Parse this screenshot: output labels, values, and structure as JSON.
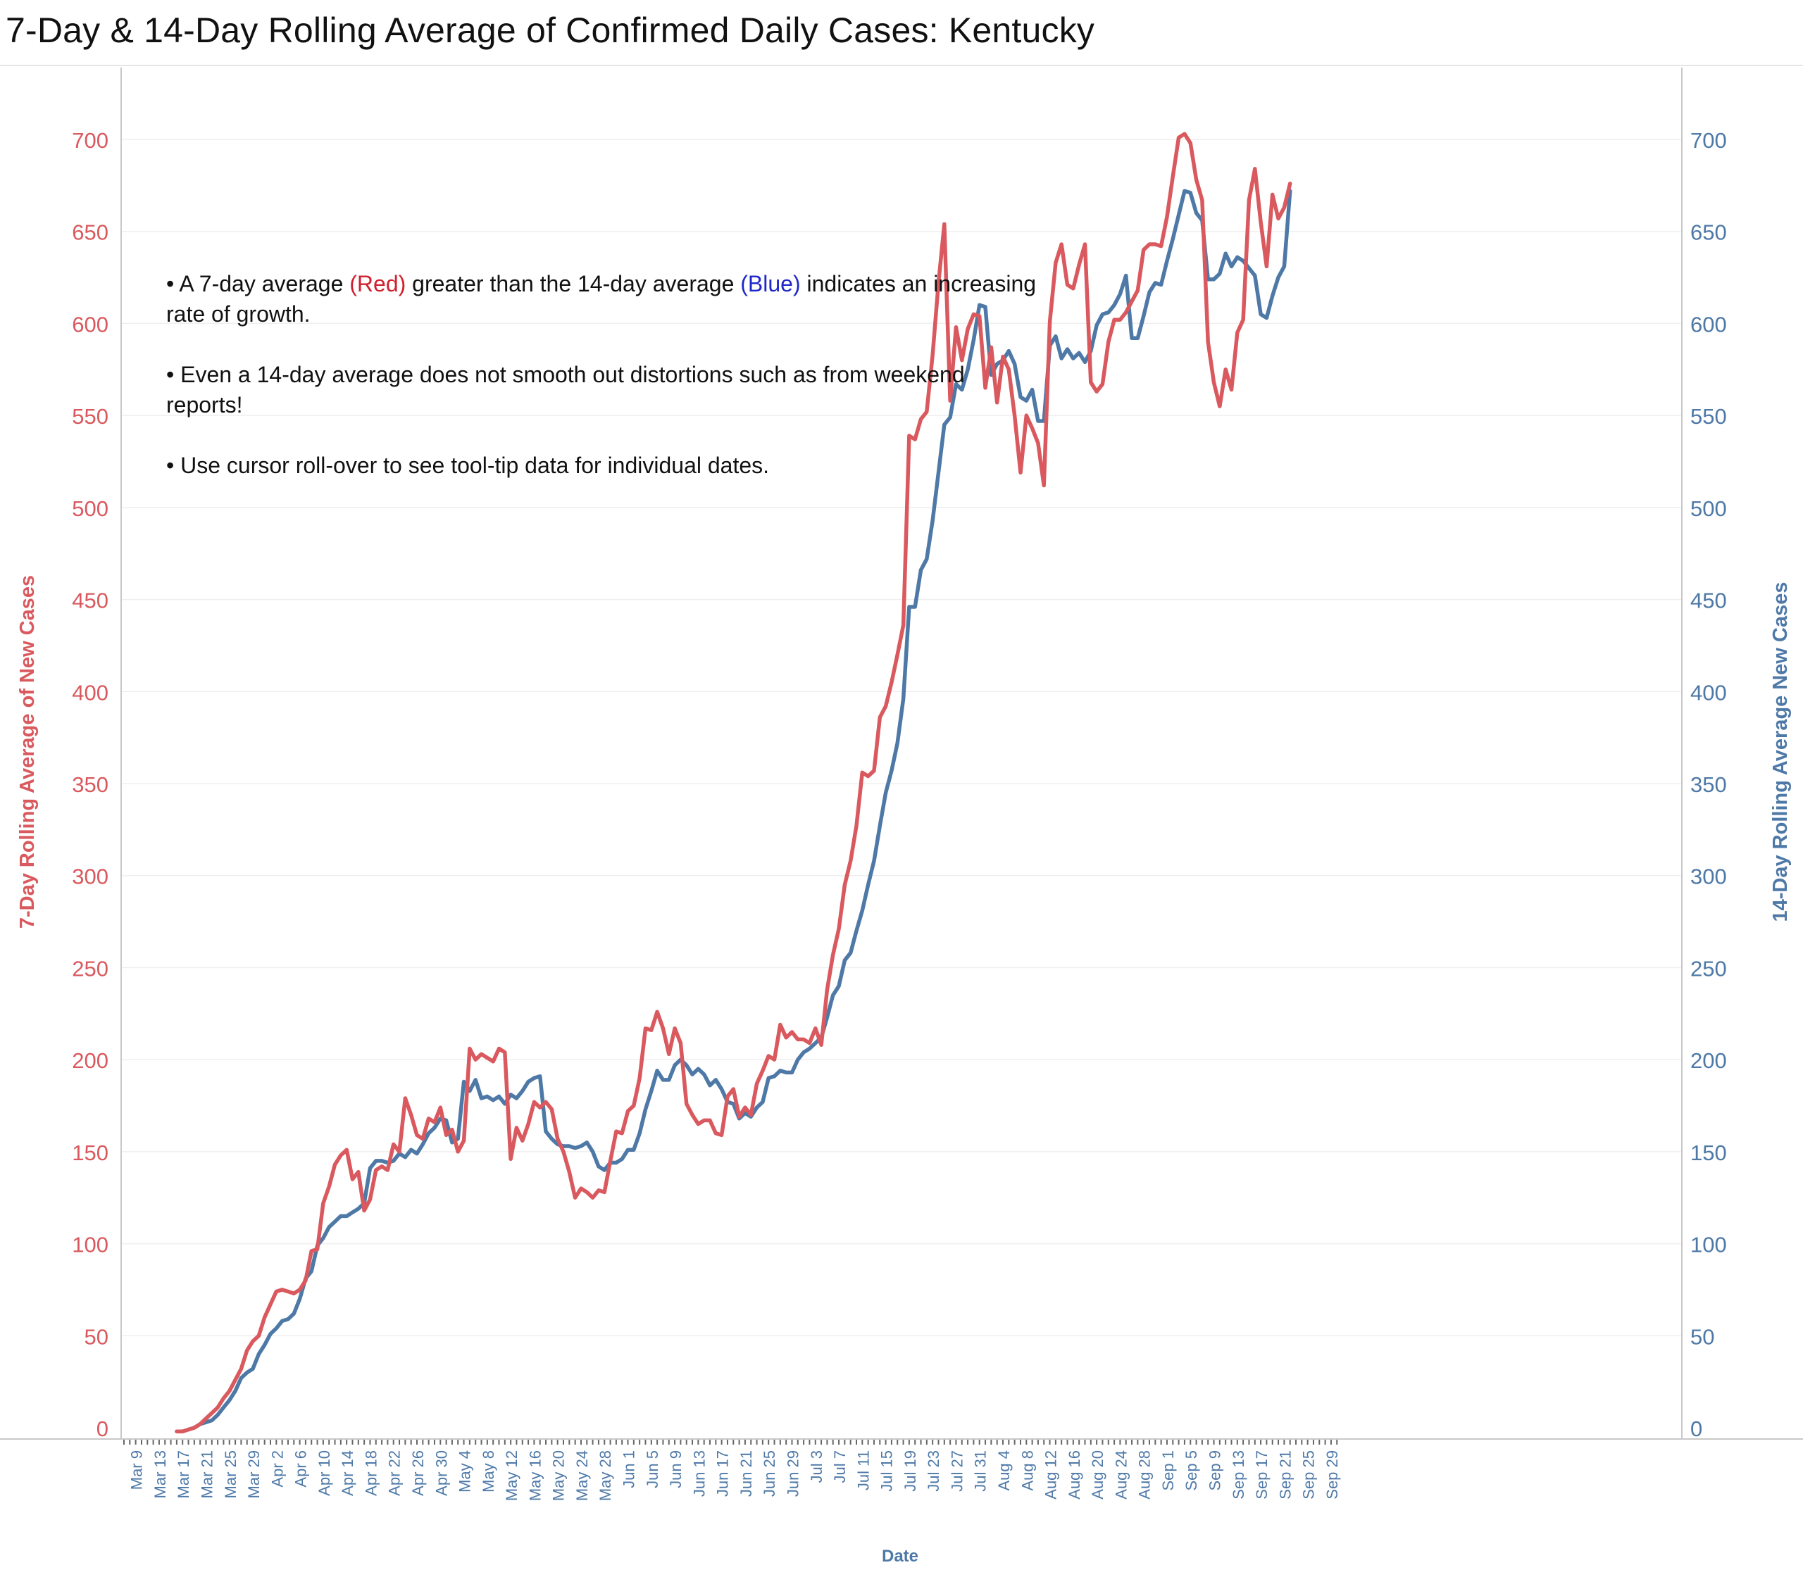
{
  "chart_data": {
    "type": "line",
    "title": "7-Day & 14-Day Rolling Average of Confirmed Daily  Cases:  Kentucky",
    "xlabel": "Date",
    "ylabel_left": "7-Day Rolling  Average of New Cases",
    "ylabel_right": "14-Day Rolling Average New Cases",
    "ylim": [
      0,
      700
    ],
    "y_ticks": [
      0,
      50,
      100,
      150,
      200,
      250,
      300,
      350,
      400,
      450,
      500,
      550,
      600,
      650,
      700
    ],
    "x_range": [
      "2020-03-07",
      "2020-09-30"
    ],
    "x_tick_labels": [
      "Mar 9",
      "Mar 13",
      "Mar 17",
      "Mar 21",
      "Mar 25",
      "Mar 29",
      "Apr 2",
      "Apr 6",
      "Apr 10",
      "Apr 14",
      "Apr 18",
      "Apr 22",
      "Apr 26",
      "Apr 30",
      "May 4",
      "May 8",
      "May 12",
      "May 16",
      "May 20",
      "May 24",
      "May 28",
      "Jun 1",
      "Jun 5",
      "Jun 9",
      "Jun 13",
      "Jun 17",
      "Jun 21",
      "Jun 25",
      "Jun 29",
      "Jul 3",
      "Jul 7",
      "Jul 11",
      "Jul 15",
      "Jul 19",
      "Jul 23",
      "Jul 27",
      "Jul 31",
      "Aug 4",
      "Aug 8",
      "Aug 12",
      "Aug 16",
      "Aug 20",
      "Aug 24",
      "Aug 28",
      "Sep 1",
      "Sep 5",
      "Sep 9",
      "Sep 13",
      "Sep 17",
      "Sep 21",
      "Sep 25",
      "Sep 29"
    ],
    "grid": true,
    "series": [
      {
        "name": "7-day",
        "color": "#d9595e",
        "start": "2020-03-16",
        "values": [
          -2,
          -2,
          -1,
          0,
          2,
          5,
          8,
          11,
          16,
          20,
          26,
          32,
          42,
          47,
          50,
          60,
          67,
          74,
          75,
          74,
          73,
          75,
          80,
          96,
          97,
          122,
          131,
          143,
          148,
          151,
          135,
          139,
          118,
          124,
          140,
          142,
          140,
          154,
          150,
          179,
          170,
          159,
          157,
          168,
          166,
          174,
          159,
          162,
          150,
          156,
          206,
          200,
          203,
          201,
          199,
          206,
          204,
          146,
          163,
          156,
          165,
          177,
          174,
          177,
          173,
          157,
          150,
          139,
          125,
          130,
          128,
          125,
          129,
          128,
          145,
          161,
          160,
          172,
          175,
          190,
          217,
          216,
          226,
          217,
          203,
          217,
          209,
          176,
          170,
          165,
          167,
          167,
          160,
          159,
          180,
          184,
          169,
          174,
          170,
          187,
          194,
          202,
          200,
          219,
          212,
          215,
          211,
          211,
          209,
          217,
          208,
          238,
          257,
          271,
          295,
          308,
          327,
          356,
          354,
          357,
          386,
          392,
          405,
          420,
          436,
          539,
          537,
          548,
          552,
          583,
          622,
          654,
          558,
          598,
          580,
          597,
          605,
          604,
          565,
          587,
          557,
          582,
          575,
          550,
          519,
          550,
          543,
          535,
          512,
          601,
          633,
          643,
          621,
          619,
          632,
          643,
          568,
          563,
          567,
          590,
          602,
          602,
          606,
          612,
          618,
          640,
          643,
          643,
          642,
          658,
          680,
          701,
          703,
          698,
          678,
          667,
          590,
          568,
          555,
          575,
          564,
          595,
          602,
          667,
          684,
          655,
          631,
          670,
          657,
          663,
          676
        ]
      },
      {
        "name": "14-day",
        "color": "#4e79a7",
        "start": "2020-03-18",
        "values": [
          -1,
          0,
          2,
          3,
          4,
          7,
          11,
          15,
          20,
          27,
          30,
          32,
          40,
          45,
          51,
          54,
          58,
          59,
          62,
          70,
          81,
          85,
          99,
          103,
          109,
          112,
          115,
          115,
          117,
          119,
          122,
          141,
          145,
          145,
          144,
          145,
          149,
          147,
          151,
          149,
          154,
          160,
          163,
          168,
          167,
          155,
          157,
          188,
          183,
          189,
          179,
          180,
          178,
          180,
          176,
          181,
          179,
          183,
          188,
          190,
          191,
          161,
          157,
          154,
          153,
          153,
          152,
          153,
          155,
          150,
          142,
          140,
          144,
          144,
          146,
          151,
          151,
          160,
          173,
          183,
          194,
          189,
          189,
          197,
          200,
          197,
          192,
          195,
          192,
          186,
          189,
          184,
          177,
          176,
          168,
          171,
          169,
          174,
          177,
          190,
          191,
          194,
          193,
          193,
          200,
          204,
          206,
          209,
          212,
          223,
          235,
          240,
          254,
          258,
          270,
          281,
          295,
          308,
          327,
          345,
          357,
          372,
          396,
          446,
          446,
          466,
          472,
          493,
          519,
          545,
          549,
          567,
          564,
          575,
          591,
          610,
          609,
          572,
          578,
          580,
          585,
          578,
          560,
          558,
          564,
          547,
          547,
          588,
          593,
          581,
          586,
          581,
          584,
          579,
          585,
          599,
          605,
          606,
          610,
          616,
          626,
          592,
          592,
          604,
          617,
          622,
          621,
          634,
          646,
          659,
          672,
          671,
          660,
          656,
          624,
          624,
          627,
          638,
          631,
          636,
          634,
          630,
          626,
          605,
          603,
          615,
          625,
          631,
          672
        ]
      }
    ]
  },
  "annotations": [
    {
      "before": "• A 7-day average ",
      "red": "(Red)",
      "middle": " greater than the 14-day average ",
      "blue": "(Blue)",
      "after": " indicates an increasing rate of growth."
    },
    {
      "text": "• Even a 14-day average does not smooth out distortions such as from weekend reports!"
    },
    {
      "text": "• Use cursor roll-over to see tool-tip data for individual dates."
    }
  ]
}
